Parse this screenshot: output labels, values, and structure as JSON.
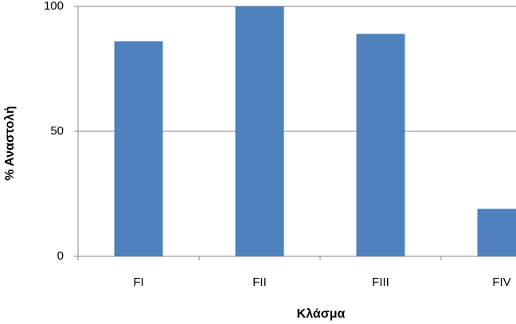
{
  "chart_data": {
    "type": "bar",
    "x_label": "Κλάσμα",
    "y_label": "% Αναστολή",
    "categories": [
      "FI",
      "FII",
      "FIII",
      "FIV"
    ],
    "values": [
      86,
      100,
      89,
      19
    ],
    "color": "#4f81bd",
    "ylim": [
      0,
      100
    ],
    "yticks": [
      0,
      50,
      100
    ],
    "grid": true
  }
}
